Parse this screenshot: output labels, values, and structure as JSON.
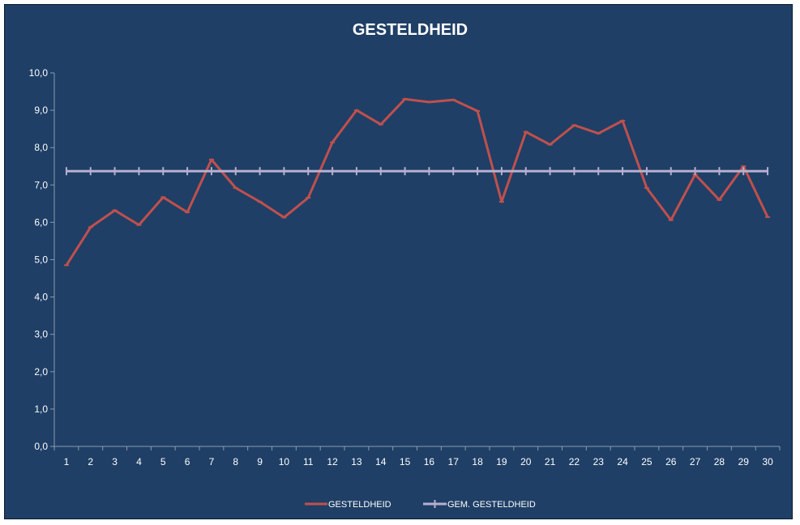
{
  "chart_data": {
    "type": "line",
    "title": "GESTELDHEID",
    "xlabel": "",
    "ylabel": "",
    "categories": [
      "1",
      "2",
      "3",
      "4",
      "5",
      "6",
      "7",
      "8",
      "9",
      "10",
      "11",
      "12",
      "13",
      "14",
      "15",
      "16",
      "17",
      "18",
      "19",
      "20",
      "21",
      "22",
      "23",
      "24",
      "25",
      "26",
      "27",
      "28",
      "29",
      "30"
    ],
    "ylim": [
      0,
      10
    ],
    "ytick_values": [
      0,
      1,
      2,
      3,
      4,
      5,
      6,
      7,
      8,
      9,
      10
    ],
    "ytick_labels": [
      "0,0",
      "1,0",
      "2,0",
      "3,0",
      "4,0",
      "5,0",
      "6,0",
      "7,0",
      "8,0",
      "9,0",
      "10,0"
    ],
    "grid": false,
    "legend_position": "bottom",
    "series": [
      {
        "name": "GESTELDHEID",
        "color": "#c0504d",
        "values": [
          4.85,
          5.87,
          6.32,
          5.93,
          6.67,
          6.27,
          7.68,
          6.92,
          6.55,
          6.13,
          6.66,
          8.14,
          9.0,
          8.62,
          9.3,
          9.22,
          9.28,
          8.98,
          6.55,
          8.42,
          8.08,
          8.6,
          8.38,
          8.72,
          6.92,
          6.06,
          7.28,
          6.6,
          7.5,
          6.14
        ]
      },
      {
        "name": "GEM. GESTELDHEID",
        "color": "#b7afd0",
        "values": [
          7.37,
          7.37,
          7.37,
          7.37,
          7.37,
          7.37,
          7.37,
          7.37,
          7.37,
          7.37,
          7.37,
          7.37,
          7.37,
          7.37,
          7.37,
          7.37,
          7.37,
          7.37,
          7.37,
          7.37,
          7.37,
          7.37,
          7.37,
          7.37,
          7.37,
          7.37,
          7.37,
          7.37,
          7.37,
          7.37
        ]
      }
    ]
  }
}
